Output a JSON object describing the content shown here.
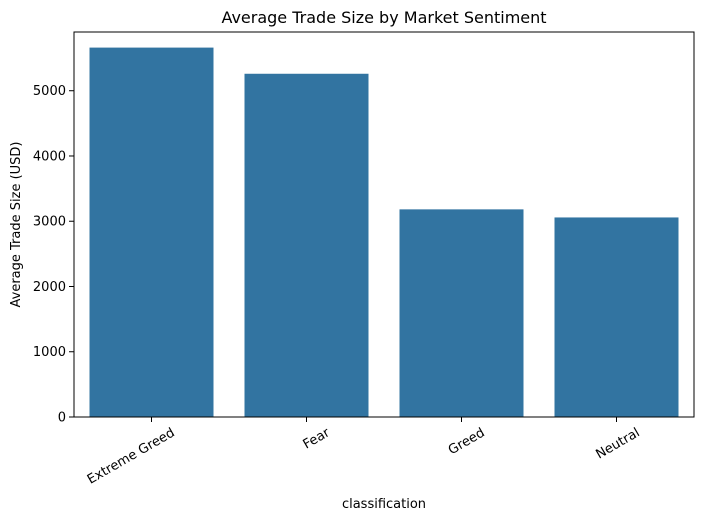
{
  "chart_data": {
    "type": "bar",
    "title": "Average Trade Size by Market Sentiment",
    "xlabel": "classification",
    "ylabel": "Average Trade Size (USD)",
    "categories": [
      "Extreme Greed",
      "Fear",
      "Greed",
      "Neutral"
    ],
    "values": [
      5661,
      5260,
      3182,
      3058
    ],
    "ylim": [
      0,
      5900
    ],
    "yticks": [
      0,
      1000,
      2000,
      3000,
      4000,
      5000
    ],
    "grid": false,
    "bar_color": "#3274a1"
  }
}
